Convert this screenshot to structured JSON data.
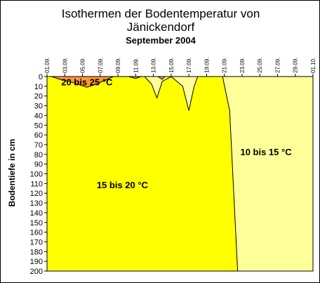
{
  "chart_data": {
    "type": "area",
    "title": "Isothermen der Bodentemperatur von",
    "title_line2": "Jänickendorf",
    "subtitle": "September 2004",
    "ylabel": "Bodentiefe in cm",
    "x_ticks": [
      "01.09.",
      "03.09.",
      "05.09.",
      "07.09.",
      "09.09.",
      "11.09.",
      "13.09.",
      "15.09.",
      "17.09.",
      "19.09.",
      "21.09.",
      "23.09.",
      "25.09.",
      "27.09.",
      "29.09.",
      "01.10."
    ],
    "x_range_days": [
      1,
      31
    ],
    "y_ticks": [
      0,
      10,
      20,
      30,
      40,
      50,
      60,
      70,
      80,
      90,
      100,
      110,
      120,
      130,
      140,
      150,
      160,
      170,
      180,
      190,
      200
    ],
    "ylim": [
      0,
      200
    ],
    "y_inverted": true,
    "grid": false,
    "bands": [
      {
        "name": "20 bis 25 °C",
        "color": "#ff9933",
        "regions": [
          [
            [
              1.5,
              0
            ],
            [
              2.5,
              3
            ],
            [
              3.5,
              5
            ],
            [
              4.5,
              8
            ],
            [
              5.5,
              11
            ],
            [
              6.5,
              8
            ],
            [
              7.5,
              4
            ],
            [
              8.5,
              0
            ]
          ],
          [
            [
              10.2,
              0
            ],
            [
              11.0,
              2
            ],
            [
              11.6,
              0
            ]
          ],
          [
            [
              13.5,
              0
            ],
            [
              14.0,
              3
            ],
            [
              14.3,
              0
            ]
          ]
        ]
      },
      {
        "name": "15 bis 20 °C",
        "color": "#ffff00",
        "boundary_upper": [
          [
            1,
            0
          ],
          [
            12.0,
            0
          ],
          [
            12.8,
            8
          ],
          [
            13.4,
            22
          ],
          [
            14.0,
            5
          ],
          [
            15.0,
            0
          ],
          [
            16.3,
            10
          ],
          [
            17.0,
            35
          ],
          [
            17.6,
            10
          ],
          [
            18.0,
            0
          ],
          [
            20.8,
            0
          ],
          [
            21.6,
            35
          ],
          [
            22.5,
            200
          ]
        ],
        "left_edge": 1
      },
      {
        "name": "10 bis 15 °C",
        "color": "#ffff99"
      }
    ],
    "band_label_positions": [
      {
        "text": "20 bis 25 °C",
        "day": 5.5,
        "depth": 6
      },
      {
        "text": "15 bis 20 °C",
        "day": 9.5,
        "depth": 112
      },
      {
        "text": "10 bis 15 °C",
        "day": 25.7,
        "depth": 78
      }
    ]
  }
}
